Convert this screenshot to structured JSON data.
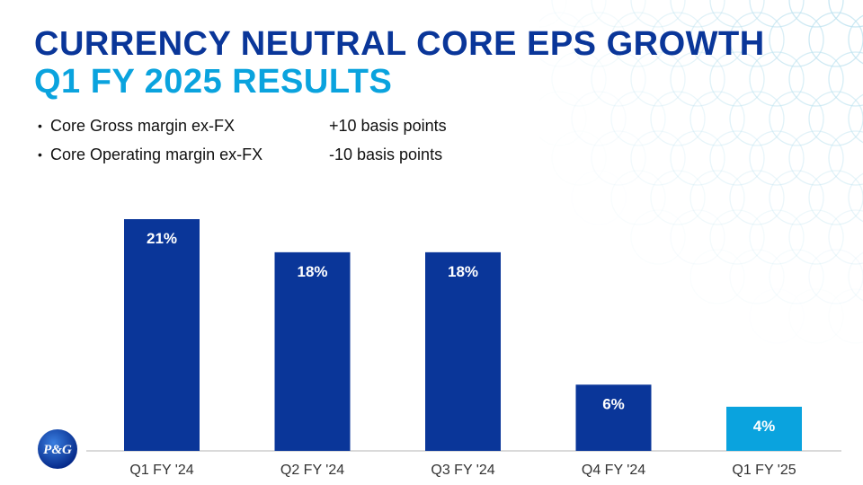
{
  "title": {
    "line1": "CURRENCY NEUTRAL CORE EPS GROWTH",
    "line2": "Q1 FY 2025 RESULTS"
  },
  "bullets": [
    {
      "label": "Core Gross margin ex-FX",
      "value": "+10 basis points"
    },
    {
      "label": "Core Operating margin ex-FX",
      "value": "-10 basis points"
    }
  ],
  "logo": {
    "text": "P&G"
  },
  "colors": {
    "dark_blue": "#0a3699",
    "light_blue": "#0aa3de",
    "pattern": "#bfe3f0"
  },
  "chart_data": {
    "type": "bar",
    "title": "",
    "xlabel": "",
    "ylabel": "",
    "categories": [
      "Q1 FY '24",
      "Q2 FY '24",
      "Q3 FY '24",
      "Q4 FY '24",
      "Q1 FY '25"
    ],
    "values": [
      21,
      18,
      18,
      6,
      4
    ],
    "data_labels": [
      "21%",
      "18%",
      "18%",
      "6%",
      "4%"
    ],
    "highlight_index": 4,
    "ylim": [
      0,
      21
    ],
    "grid": false
  }
}
